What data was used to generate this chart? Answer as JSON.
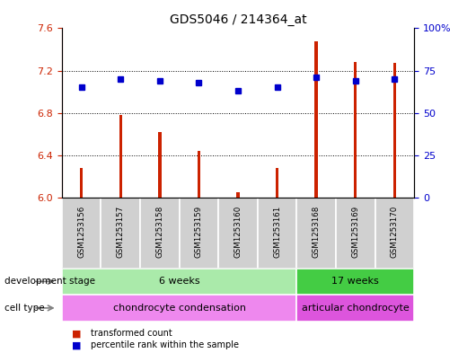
{
  "title": "GDS5046 / 214364_at",
  "samples": [
    "GSM1253156",
    "GSM1253157",
    "GSM1253158",
    "GSM1253159",
    "GSM1253160",
    "GSM1253161",
    "GSM1253168",
    "GSM1253169",
    "GSM1253170"
  ],
  "transformed_count": [
    6.28,
    6.78,
    6.62,
    6.44,
    6.05,
    6.28,
    7.48,
    7.28,
    7.27
  ],
  "percentile_rank": [
    65,
    70,
    69,
    68,
    63,
    65,
    71,
    69,
    70
  ],
  "ylim_left": [
    6.0,
    7.6
  ],
  "ylim_right": [
    0,
    100
  ],
  "yticks_left": [
    6.0,
    6.4,
    6.8,
    7.2,
    7.6
  ],
  "yticks_right": [
    0,
    25,
    50,
    75,
    100
  ],
  "bar_color": "#cc2200",
  "dot_color": "#0000cc",
  "dev_stage_groups": [
    {
      "label": "6 weeks",
      "start": 0,
      "end": 6,
      "color": "#aaeaaa"
    },
    {
      "label": "17 weeks",
      "start": 6,
      "end": 9,
      "color": "#44cc44"
    }
  ],
  "cell_type_groups": [
    {
      "label": "chondrocyte condensation",
      "start": 0,
      "end": 6,
      "color": "#ee88ee"
    },
    {
      "label": "articular chondrocyte",
      "start": 6,
      "end": 9,
      "color": "#dd55dd"
    }
  ],
  "left_axis_color": "#cc2200",
  "right_axis_color": "#0000cc",
  "title_fontsize": 10,
  "tick_fontsize": 8,
  "bar_width": 0.08
}
